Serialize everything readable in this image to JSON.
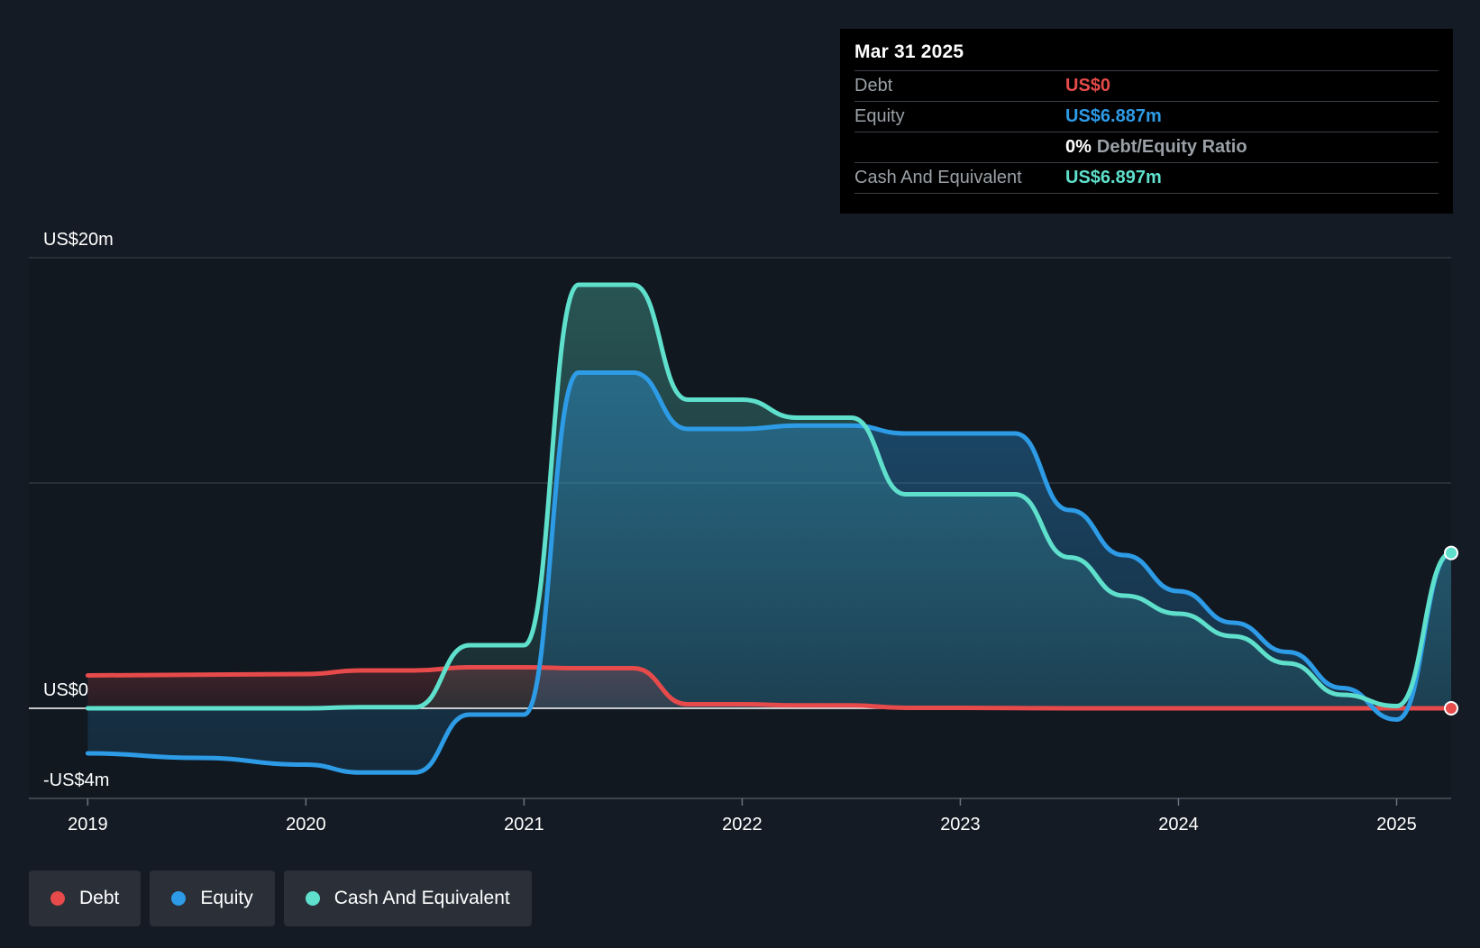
{
  "tooltip": {
    "date": "Mar 31 2025",
    "debt_label": "Debt",
    "debt_value": "US$0",
    "equity_label": "Equity",
    "equity_value": "US$6.887m",
    "ratio_value": "0%",
    "ratio_label": "Debt/Equity Ratio",
    "cash_label": "Cash And Equivalent",
    "cash_value": "US$6.897m"
  },
  "legend": [
    {
      "label": "Debt",
      "color": "#e64a4a"
    },
    {
      "label": "Equity",
      "color": "#2d9be6"
    },
    {
      "label": "Cash And Equivalent",
      "color": "#5fe0cc"
    }
  ],
  "colors": {
    "debt": "#e64a4a",
    "equity": "#2d9be6",
    "cash": "#5fe0cc",
    "background": "#151b24"
  },
  "chart_data": {
    "type": "area",
    "title": "",
    "xlabel": "",
    "ylabel": "",
    "ylim": [
      -4,
      20
    ],
    "xlim": [
      2018.73,
      2025.25
    ],
    "y_tick_labels": [
      {
        "value": 20,
        "label": "US$20m"
      },
      {
        "value": 0,
        "label": "US$0"
      },
      {
        "value": -4,
        "label": "-US$4m"
      }
    ],
    "x_ticks": [
      2019,
      2020,
      2021,
      2022,
      2023,
      2024,
      2025
    ],
    "x_tick_labels": [
      "2019",
      "2020",
      "2021",
      "2022",
      "2023",
      "2024",
      "2025"
    ],
    "series": [
      {
        "name": "Debt",
        "key": "debt",
        "points": [
          [
            2019.0,
            1.46
          ],
          [
            2020.0,
            1.52
          ],
          [
            2020.25,
            1.68
          ],
          [
            2020.5,
            1.68
          ],
          [
            2020.75,
            1.82
          ],
          [
            2021.0,
            1.82
          ],
          [
            2021.25,
            1.78
          ],
          [
            2021.5,
            1.78
          ],
          [
            2021.75,
            0.18
          ],
          [
            2022.0,
            0.18
          ],
          [
            2022.25,
            0.13
          ],
          [
            2022.5,
            0.13
          ],
          [
            2022.75,
            0.02
          ],
          [
            2023.0,
            0.02
          ],
          [
            2023.5,
            0.0
          ],
          [
            2024.0,
            0.0
          ],
          [
            2024.5,
            0.0
          ],
          [
            2025.0,
            0.0
          ],
          [
            2025.25,
            0.0
          ]
        ]
      },
      {
        "name": "Equity",
        "key": "equity",
        "points": [
          [
            2019.0,
            -2.0
          ],
          [
            2019.5,
            -2.2
          ],
          [
            2020.0,
            -2.5
          ],
          [
            2020.25,
            -2.85
          ],
          [
            2020.5,
            -2.85
          ],
          [
            2020.75,
            -0.28
          ],
          [
            2021.0,
            -0.28
          ],
          [
            2021.25,
            14.9
          ],
          [
            2021.5,
            14.9
          ],
          [
            2021.75,
            12.4
          ],
          [
            2022.0,
            12.4
          ],
          [
            2022.25,
            12.55
          ],
          [
            2022.5,
            12.55
          ],
          [
            2022.75,
            12.2
          ],
          [
            2023.0,
            12.2
          ],
          [
            2023.25,
            12.2
          ],
          [
            2023.5,
            8.8
          ],
          [
            2023.75,
            6.8
          ],
          [
            2024.0,
            5.2
          ],
          [
            2024.25,
            3.8
          ],
          [
            2024.5,
            2.5
          ],
          [
            2024.75,
            0.9
          ],
          [
            2025.0,
            -0.5
          ],
          [
            2025.25,
            6.887
          ]
        ]
      },
      {
        "name": "Cash And Equivalent",
        "key": "cash",
        "points": [
          [
            2019.0,
            0.0
          ],
          [
            2019.5,
            0.0
          ],
          [
            2020.0,
            0.0
          ],
          [
            2020.25,
            0.05
          ],
          [
            2020.5,
            0.05
          ],
          [
            2020.75,
            2.8
          ],
          [
            2021.0,
            2.8
          ],
          [
            2021.25,
            18.8
          ],
          [
            2021.5,
            18.8
          ],
          [
            2021.75,
            13.7
          ],
          [
            2022.0,
            13.7
          ],
          [
            2022.25,
            12.9
          ],
          [
            2022.5,
            12.9
          ],
          [
            2022.75,
            9.5
          ],
          [
            2023.0,
            9.5
          ],
          [
            2023.25,
            9.5
          ],
          [
            2023.5,
            6.7
          ],
          [
            2023.75,
            5.0
          ],
          [
            2024.0,
            4.2
          ],
          [
            2024.25,
            3.2
          ],
          [
            2024.5,
            2.0
          ],
          [
            2024.75,
            0.6
          ],
          [
            2025.0,
            0.1
          ],
          [
            2025.25,
            6.897
          ]
        ]
      }
    ]
  }
}
